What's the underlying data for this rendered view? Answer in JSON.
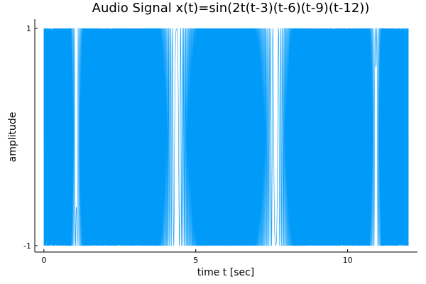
{
  "chart_data": {
    "type": "line",
    "title": "Audio Signal x(t)=sin(2t(t-3)(t-6)(t-9)(t-12))",
    "xlabel": "time t [sec]",
    "ylabel": "amplitude",
    "xlim": [
      -0.3,
      12.3
    ],
    "ylim": [
      -1,
      1
    ],
    "xticks": [
      0,
      5,
      10
    ],
    "yticks": [
      -1,
      1
    ],
    "grid": false,
    "legend": "none",
    "series": [
      {
        "function": "sin(2t(t-3)(t-6)(t-9)(t-12))",
        "t_range": [
          0,
          12
        ],
        "color": "#009af9"
      }
    ]
  }
}
